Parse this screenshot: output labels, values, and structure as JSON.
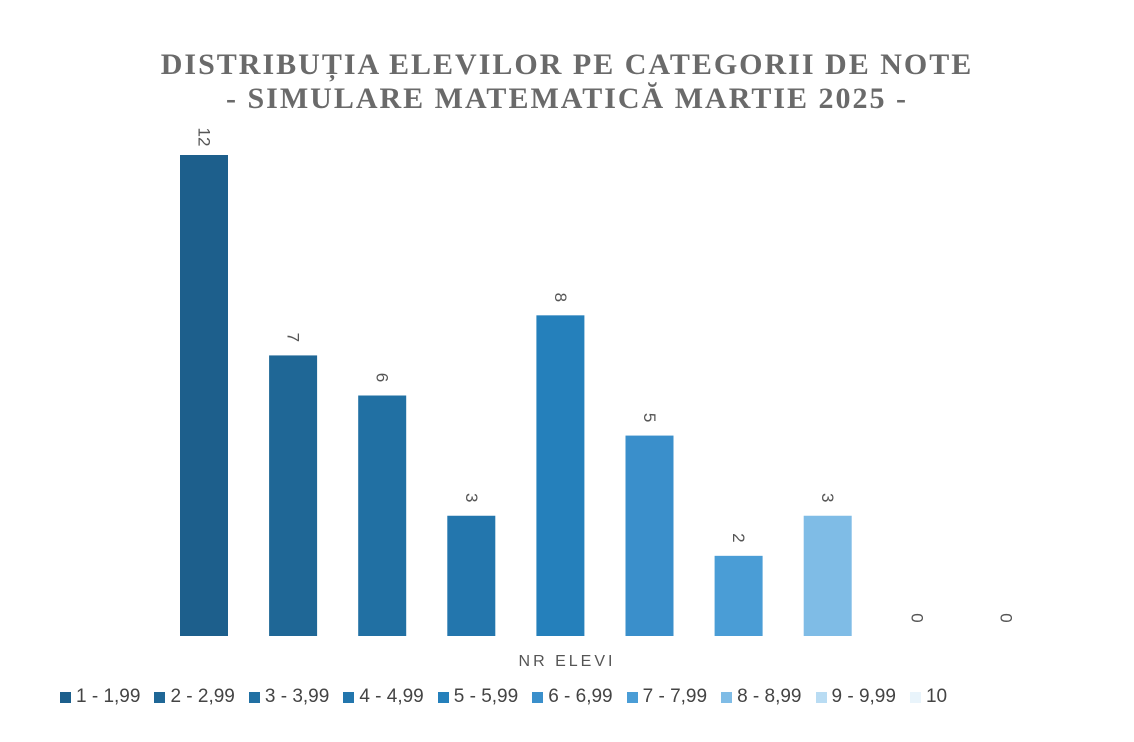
{
  "chart_data": {
    "type": "bar",
    "title": "DISTRIBUȚIA ELEVILOR PE CATEGORII DE NOTE",
    "subtitle": "- SIMULARE MATEMATICĂ MARTIE 2025 -",
    "xlabel": "NR ELEVI",
    "ylabel": "",
    "ylim": [
      0,
      12
    ],
    "grid": false,
    "legend_position": "bottom",
    "categories": [
      "1 - 1,99",
      "2 - 2,99",
      "3 - 3,99",
      "4 - 4,99",
      "5 - 5,99",
      "6 - 6,99",
      "7 - 7,99",
      "8 - 8,99",
      "9 - 9,99",
      "10"
    ],
    "values": [
      12,
      7,
      6,
      3,
      8,
      5,
      2,
      3,
      0,
      0
    ],
    "colors": [
      "#1d5f8c",
      "#1f6796",
      "#2170a3",
      "#2376ad",
      "#2580bb",
      "#3a8fcb",
      "#4a9dd6",
      "#7fbce6",
      "#b9dcf3",
      "#e9f4fb"
    ]
  }
}
